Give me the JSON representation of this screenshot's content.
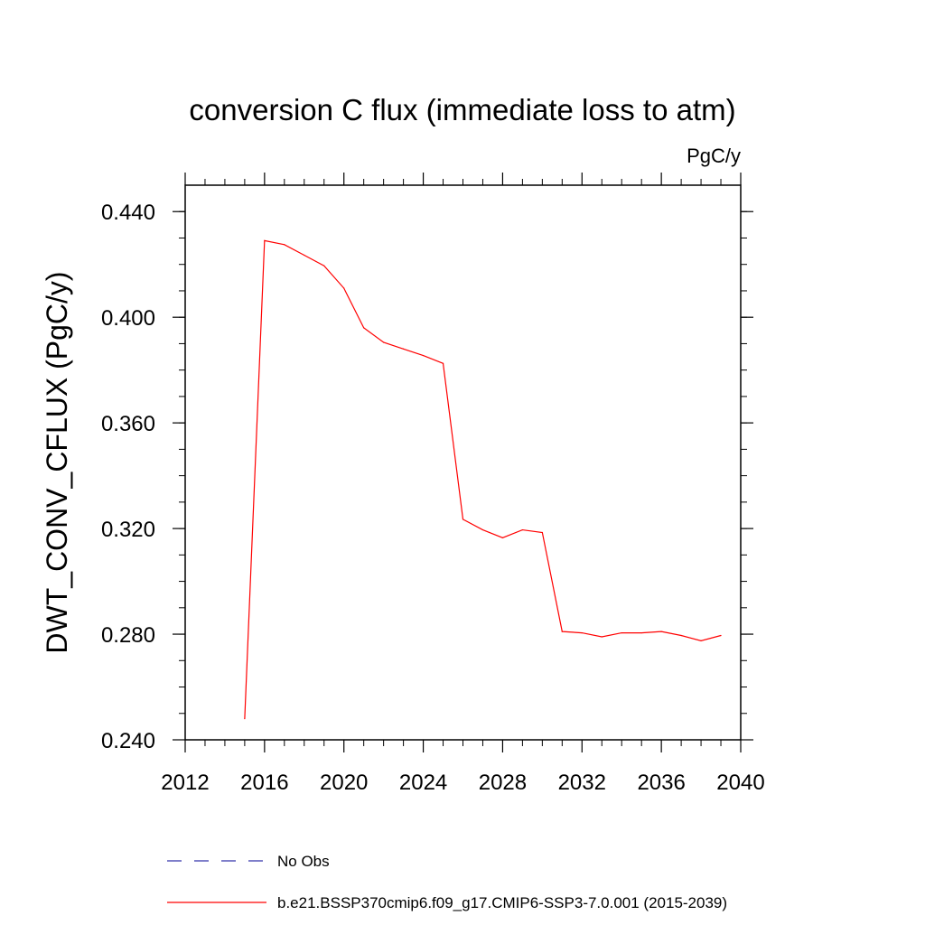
{
  "chart_data": {
    "type": "line",
    "title": "conversion C flux (immediate loss to atm)",
    "units": "PgC/y",
    "xlabel": "",
    "ylabel": "DWT_CONV_CFLUX  (PgC/y)",
    "xlim": [
      2012,
      2040
    ],
    "ylim": [
      0.24,
      0.45
    ],
    "xticks": [
      2012,
      2016,
      2020,
      2024,
      2028,
      2032,
      2036,
      2040
    ],
    "xtick_labels": [
      "2012",
      "2016",
      "2020",
      "2024",
      "2028",
      "2032",
      "2036",
      "2040"
    ],
    "yticks": [
      0.24,
      0.28,
      0.32,
      0.36,
      0.4,
      0.44
    ],
    "ytick_labels": [
      "0.240",
      "0.280",
      "0.320",
      "0.360",
      "0.400",
      "0.440"
    ],
    "grid": false,
    "legend_position": "bottom",
    "series": [
      {
        "name": "No Obs",
        "color": "#3333aa",
        "style": "dashed",
        "x": [],
        "values": []
      },
      {
        "name": "b.e21.BSSP370cmip6.f09_g17.CMIP6-SSP3-7.0.001 (2015-2039)",
        "color": "#ff0000",
        "style": "solid",
        "x": [
          2015,
          2016,
          2017,
          2018,
          2019,
          2020,
          2021,
          2022,
          2023,
          2024,
          2025,
          2026,
          2027,
          2028,
          2029,
          2030,
          2031,
          2032,
          2033,
          2034,
          2035,
          2036,
          2037,
          2038,
          2039
        ],
        "values": [
          0.248,
          0.429,
          0.4275,
          0.4235,
          0.4195,
          0.411,
          0.396,
          0.3905,
          0.388,
          0.3855,
          0.3825,
          0.3235,
          0.3195,
          0.3165,
          0.3195,
          0.3185,
          0.281,
          0.2805,
          0.279,
          0.2805,
          0.2805,
          0.281,
          0.2795,
          0.2775,
          0.2795
        ]
      }
    ]
  }
}
